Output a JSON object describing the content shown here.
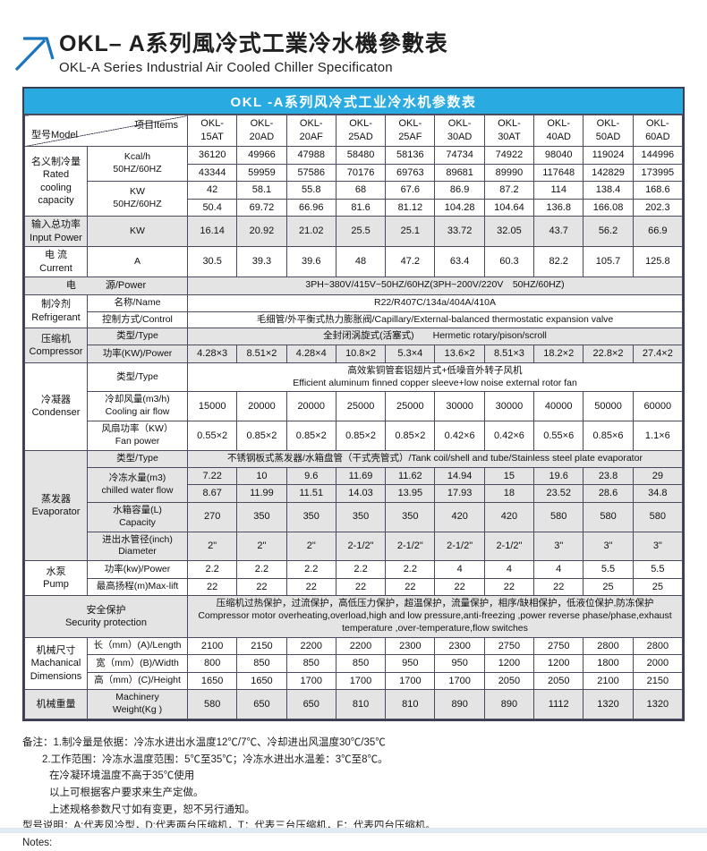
{
  "header": {
    "title_cn": "OKL– A系列風冷式工業冷水機參數表",
    "title_en": "OKL-A Series Industrial Air Cooled Chiller Specificaton"
  },
  "colors": {
    "banner_blue": "#29abe2",
    "shade_gray": "#e4e4e4",
    "border": "#4a4a60",
    "arrow_blue": "#1b75bc"
  },
  "table": {
    "banner": "OKL -A系列风冷式工业冷水机参数表",
    "corner_left": "型号Model",
    "corner_right": "项目Items",
    "rows": [
      {
        "n": "model-header-row",
        "cells": [
          {
            "corner": true,
            "cs": 2
          }
        ],
        "vals_cls": "model",
        "vals": [
          "OKL-\n15AT",
          "OKL-\n20AD",
          "OKL-\n20AF",
          "OKL-\n25AD",
          "OKL-\n25AF",
          "OKL-\n30AD",
          "OKL-\n30AT",
          "OKL-\n40AD",
          "OKL-\n50AD",
          "OKL-\n60AD"
        ]
      },
      {
        "cells": [
          {
            "t": "名义制冷量\nRated\ncooling\ncapacity",
            "rs": 4,
            "cls": "lbl",
            "n": "row-label-rated-cooling-capacity"
          },
          {
            "t": "Kcal/h\n50HZ/60HZ",
            "rs": 2,
            "cls": "item",
            "n": "item-label-kcal"
          }
        ],
        "vals": [
          "36120",
          "49966",
          "47988",
          "58480",
          "58136",
          "74734",
          "74922",
          "98040",
          "119024",
          "144996"
        ]
      },
      {
        "vals": [
          "43344",
          "59959",
          "57586",
          "70176",
          "69763",
          "89681",
          "89990",
          "117648",
          "142829",
          "173995"
        ]
      },
      {
        "cells": [
          {
            "t": "KW\n50HZ/60HZ",
            "rs": 2,
            "cls": "item",
            "n": "item-label-kw"
          }
        ],
        "vals": [
          "42",
          "58.1",
          "55.8",
          "68",
          "67.6",
          "86.9",
          "87.2",
          "114",
          "138.4",
          "168.6"
        ]
      },
      {
        "vals": [
          "50.4",
          "69.72",
          "66.96",
          "81.6",
          "81.12",
          "104.28",
          "104.64",
          "136.8",
          "166.08",
          "202.3"
        ]
      },
      {
        "shade": true,
        "cells": [
          {
            "t": "输入总功率\nInput Power",
            "cls": "lbl",
            "n": "row-label-input-power"
          },
          {
            "t": "KW",
            "cls": "item",
            "n": "item-label-input-kw"
          }
        ],
        "vals": [
          "16.14",
          "20.92",
          "21.02",
          "25.5",
          "25.1",
          "33.72",
          "32.05",
          "43.7",
          "56.2",
          "66.9"
        ]
      },
      {
        "cells": [
          {
            "t": "电 流\nCurrent",
            "cls": "lbl",
            "n": "row-label-current"
          },
          {
            "t": "A",
            "cls": "item",
            "n": "item-label-ampere"
          }
        ],
        "vals": [
          "30.5",
          "39.3",
          "39.6",
          "48",
          "47.2",
          "63.4",
          "60.3",
          "82.2",
          "105.7",
          "125.8"
        ]
      },
      {
        "shade": true,
        "cells": [
          {
            "t": "电　　　源/Power",
            "cs": 2,
            "cls": "lbl",
            "n": "row-label-power-supply"
          },
          {
            "t": "3PH~380V/415V~50HZ/60HZ(3PH~200V/220V　50HZ/60HZ)",
            "cs": 10,
            "cls": "wide",
            "n": "value-power-supply"
          }
        ]
      },
      {
        "cells": [
          {
            "t": "制冷剂\nRefrigerant",
            "rs": 2,
            "cls": "lbl",
            "n": "row-label-refrigerant"
          },
          {
            "t": "名称/Name",
            "cls": "item",
            "n": "item-label-name"
          },
          {
            "t": "R22/R407C/134a/404A/410A",
            "cs": 10,
            "cls": "wide",
            "n": "value-refrigerant-name"
          }
        ]
      },
      {
        "cells": [
          {
            "t": "控制方式/Control",
            "cls": "item",
            "n": "item-label-control"
          },
          {
            "t": "毛细管/外平衡式热力膨胀阀/Capillary/External-balanced thermostatic expansion valve",
            "cs": 10,
            "cls": "wide",
            "n": "value-refrigerant-control"
          }
        ]
      },
      {
        "shade": true,
        "cells": [
          {
            "t": "压缩机\nCompressor",
            "rs": 2,
            "cls": "lbl",
            "n": "row-label-compressor"
          },
          {
            "t": "类型/Type",
            "cls": "item",
            "n": "item-label-compressor-type"
          },
          {
            "t": "全封闭涡旋式(活塞式)　　Hermetic rotary/pison/scroll",
            "cs": 10,
            "cls": "wide",
            "n": "value-compressor-type"
          }
        ]
      },
      {
        "shade": true,
        "cells": [
          {
            "t": "功率(KW)/Power",
            "cls": "item",
            "n": "item-label-compressor-power"
          }
        ],
        "vals": [
          "4.28×3",
          "8.51×2",
          "4.28×4",
          "10.8×2",
          "5.3×4",
          "13.6×2",
          "8.51×3",
          "18.2×2",
          "22.8×2",
          "27.4×2"
        ]
      },
      {
        "cells": [
          {
            "t": "冷凝器\nCondenser",
            "rs": 3,
            "cls": "lbl",
            "n": "row-label-condenser"
          },
          {
            "t": "类型/Type",
            "cls": "item",
            "n": "item-label-condenser-type"
          },
          {
            "t": "高效紫铜管套铝翅片式+低噪音外转子风机\nEfficient aluminum finned copper sleeve+low noise external rotor fan",
            "cs": 10,
            "cls": "wide",
            "n": "value-condenser-type"
          }
        ]
      },
      {
        "cells": [
          {
            "t": "冷却风量(m3/h)\nCooling air flow",
            "cls": "item",
            "n": "item-label-cooling-air-flow"
          }
        ],
        "vals": [
          "15000",
          "20000",
          "20000",
          "25000",
          "25000",
          "30000",
          "30000",
          "40000",
          "50000",
          "60000"
        ]
      },
      {
        "cells": [
          {
            "t": "风扇功率（KW）\nFan power",
            "cls": "item",
            "n": "item-label-fan-power"
          }
        ],
        "vals": [
          "0.55×2",
          "0.85×2",
          "0.85×2",
          "0.85×2",
          "0.85×2",
          "0.42×6",
          "0.42×6",
          "0.55×6",
          "0.85×6",
          "1.1×6"
        ]
      },
      {
        "shade": true,
        "cells": [
          {
            "t": "蒸发器\nEvaporator",
            "rs": 5,
            "cls": "lbl",
            "n": "row-label-evaporator"
          },
          {
            "t": "类型/Type",
            "cls": "item",
            "n": "item-label-evaporator-type"
          },
          {
            "t": "不锈钢板式蒸发器/水箱盘管（干式壳管式）/Tank coil/shell and tube/Stainless steel plate evaporator",
            "cs": 10,
            "cls": "wide",
            "n": "value-evaporator-type"
          }
        ]
      },
      {
        "shade": true,
        "cells": [
          {
            "t": "冷冻水量(m3)\nchilled water flow",
            "rs": 2,
            "cls": "item",
            "n": "item-label-chilled-water-flow"
          }
        ],
        "vals": [
          "7.22",
          "10",
          "9.6",
          "11.69",
          "11.62",
          "14.94",
          "15",
          "19.6",
          "23.8",
          "29"
        ]
      },
      {
        "shade": true,
        "vals": [
          "8.67",
          "11.99",
          "11.51",
          "14.03",
          "13.95",
          "17.93",
          "18",
          "23.52",
          "28.6",
          "34.8"
        ]
      },
      {
        "shade": true,
        "cells": [
          {
            "t": "水箱容量(L)\nCapacity",
            "cls": "item",
            "n": "item-label-tank-capacity"
          }
        ],
        "vals": [
          "270",
          "350",
          "350",
          "350",
          "350",
          "420",
          "420",
          "580",
          "580",
          "580"
        ]
      },
      {
        "shade": true,
        "cells": [
          {
            "t": "进出水管径(inch)\nDiameter",
            "cls": "item",
            "n": "item-label-pipe-diameter"
          }
        ],
        "vals": [
          "2\"",
          "2\"",
          "2\"",
          "2-1/2\"",
          "2-1/2\"",
          "2-1/2\"",
          "2-1/2\"",
          "3\"",
          "3\"",
          "3\""
        ]
      },
      {
        "cells": [
          {
            "t": "水泵\nPump",
            "rs": 2,
            "cls": "lbl",
            "n": "row-label-pump"
          },
          {
            "t": "功率(kw)/Power",
            "cls": "item",
            "n": "item-label-pump-power"
          }
        ],
        "vals": [
          "2.2",
          "2.2",
          "2.2",
          "2.2",
          "2.2",
          "4",
          "4",
          "4",
          "5.5",
          "5.5"
        ]
      },
      {
        "cells": [
          {
            "t": "最高扬程(m)Max-lift",
            "cls": "item",
            "n": "item-label-max-lift"
          }
        ],
        "vals": [
          "22",
          "22",
          "22",
          "22",
          "22",
          "22",
          "22",
          "22",
          "25",
          "25"
        ]
      },
      {
        "shade": true,
        "cells": [
          {
            "t": "安全保护\nSecurity protection",
            "cs": 2,
            "cls": "lbl",
            "n": "row-label-security-protection"
          },
          {
            "t": "压缩机过热保护，过流保护，高低压力保护，超温保护，流量保护，相序/缺相保护，低液位保护,防冻保护\nCompressor motor overheating,overload,high and low pressure,anti-freezing ,power reverse phase/phase,exhaust temperature ,over-temperature,flow switches",
            "cs": 10,
            "cls": "wide",
            "n": "value-security-protection"
          }
        ]
      },
      {
        "cells": [
          {
            "t": "机械尺寸\nMachanical\nDimensions",
            "rs": 3,
            "cls": "lbl",
            "n": "row-label-dimensions"
          },
          {
            "t": "长（mm）(A)/Length",
            "cls": "item",
            "n": "item-label-length"
          }
        ],
        "vals": [
          "2100",
          "2150",
          "2200",
          "2200",
          "2300",
          "2300",
          "2750",
          "2750",
          "2800",
          "2800"
        ]
      },
      {
        "cells": [
          {
            "t": "宽（mm）(B)/Width",
            "cls": "item",
            "n": "item-label-width"
          }
        ],
        "vals": [
          "800",
          "850",
          "850",
          "850",
          "950",
          "950",
          "1200",
          "1200",
          "1800",
          "2000"
        ]
      },
      {
        "cells": [
          {
            "t": "高（mm）(C)/Height",
            "cls": "item",
            "n": "item-label-height"
          }
        ],
        "vals": [
          "1650",
          "1650",
          "1700",
          "1700",
          "1700",
          "1700",
          "2050",
          "2050",
          "2100",
          "2150"
        ]
      },
      {
        "shade": true,
        "cells": [
          {
            "t": "机械重量",
            "cls": "lbl",
            "n": "row-label-machinery-weight"
          },
          {
            "t": "Machinery\nWeight(Kg )",
            "cls": "item",
            "n": "item-label-weight-kg"
          }
        ],
        "vals": [
          "580",
          "650",
          "650",
          "810",
          "810",
          "890",
          "890",
          "1112",
          "1320",
          "1320"
        ]
      }
    ]
  },
  "notes": [
    "备注：1.制冷量是依据：冷冻水进出水温度12℃/7℃、冷却进出风温度30℃/35℃",
    "2.工作范围：冷冻水温度范围：5℃至35℃；冷冻水进出水温差：3℃至8℃。",
    "在冷凝环境温度不高于35℃使用",
    "以上可根据客户要求来生产定做。",
    "上述规格参数尺寸如有变更，恕不另行通知。",
    "型号说明：A:代表风冷型，D:代表两台压缩机，T：代表三台压缩机，F：代表四台压缩机。",
    "Notes:"
  ]
}
